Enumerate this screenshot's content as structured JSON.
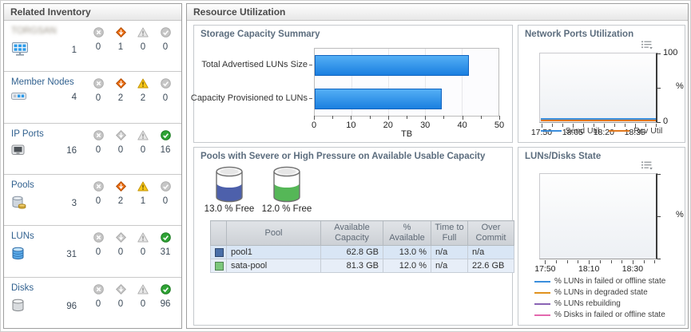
{
  "left_panel": {
    "title": "Related Inventory",
    "status_order": [
      "failed",
      "major",
      "warning",
      "normal"
    ],
    "rows": [
      {
        "label": "TORGSAN",
        "blurred": true,
        "icon": "system-icon",
        "count": 1,
        "statuses": {
          "failed": 0,
          "major": 1,
          "warning": 0,
          "normal": 0
        }
      },
      {
        "label": "Member Nodes",
        "blurred": false,
        "icon": "node-icon",
        "count": 4,
        "statuses": {
          "failed": 0,
          "major": 2,
          "warning": 2,
          "normal": 0
        }
      },
      {
        "label": "IP Ports",
        "blurred": false,
        "icon": "port-icon",
        "count": 16,
        "statuses": {
          "failed": 0,
          "major": 0,
          "warning": 0,
          "normal": 16
        }
      },
      {
        "label": "Pools",
        "blurred": false,
        "icon": "pool-icon",
        "count": 3,
        "statuses": {
          "failed": 0,
          "major": 2,
          "warning": 1,
          "normal": 0
        }
      },
      {
        "label": "LUNs",
        "blurred": false,
        "icon": "lun-icon",
        "count": 31,
        "statuses": {
          "failed": 0,
          "major": 0,
          "warning": 0,
          "normal": 31
        }
      },
      {
        "label": "Disks",
        "blurred": false,
        "icon": "disk-icon",
        "count": 96,
        "statuses": {
          "failed": 0,
          "major": 0,
          "warning": 0,
          "normal": 96
        }
      }
    ]
  },
  "right_panel": {
    "title": "Resource Utilization"
  },
  "chart_data": [
    {
      "id": "storage_capacity_summary",
      "type": "bar",
      "orientation": "horizontal",
      "title": "Storage Capacity Summary",
      "categories": [
        "Total Advertised LUNs Size",
        "Capacity Provisioned to LUNs"
      ],
      "values": [
        42,
        34.5
      ],
      "xlabel": "TB",
      "xlim": [
        0,
        50
      ],
      "xticks": [
        0,
        10,
        20,
        30,
        40,
        50
      ],
      "bar_color": "#1f87e8",
      "grid": true
    },
    {
      "id": "network_ports_utilization",
      "type": "line",
      "title": "Network Ports Utilization",
      "x_ticks": [
        "17:50",
        "18:05",
        "18:20",
        "18:35"
      ],
      "ylabel": "%",
      "ylim": [
        0,
        100
      ],
      "legend_position": "bottom",
      "series": [
        {
          "name": "Send Util",
          "color": "#3b8edc",
          "values": [
            3,
            3,
            3,
            3,
            3,
            3,
            3,
            3,
            3,
            3,
            3,
            3
          ]
        },
        {
          "name": "Rcv Util",
          "color": "#e0781e",
          "values": [
            1.5,
            1.5,
            1.5,
            1.5,
            1.5,
            1.5,
            1.5,
            1.5,
            1.5,
            1.5,
            1.5,
            1.5
          ]
        }
      ]
    },
    {
      "id": "luns_disks_state",
      "type": "line",
      "title": "LUNs/Disks State",
      "x_ticks": [
        "17:50",
        "18:10",
        "18:30"
      ],
      "ylabel": "%",
      "ylim": [
        0,
        100
      ],
      "legend_position": "bottom",
      "series": [
        {
          "name": "% LUNs in failed or offline state",
          "color": "#3b8edc",
          "values": []
        },
        {
          "name": "% LUNs in degraded state",
          "color": "#e0921e",
          "values": []
        },
        {
          "name": "% LUNs rebuilding",
          "color": "#8a63b4",
          "values": []
        },
        {
          "name": "% Disks in failed or offline state",
          "color": "#e368ae",
          "values": []
        }
      ]
    }
  ],
  "pools_panel": {
    "title": "Pools with Severe or High Pressure on Available Usable Capacity",
    "gauges": [
      {
        "label": "13.0 % Free",
        "fill_color": "#4d60ab",
        "fill_pct": 55
      },
      {
        "label": "12.0 % Free",
        "fill_color": "#55b757",
        "fill_pct": 55
      }
    ],
    "table": {
      "columns": [
        "",
        "Pool",
        "Available Capacity",
        "% Available",
        "Time to Full",
        "Over Commit"
      ],
      "rows": [
        {
          "swatch": "#4a6fa8",
          "cells": [
            "pool1",
            "62.8 GB",
            "13.0 %",
            "n/a",
            "n/a"
          ],
          "muted_last": true
        },
        {
          "swatch": "#7cc87c",
          "cells": [
            "sata-pool",
            "81.3 GB",
            "12.0 %",
            "n/a",
            "22.6 GB"
          ],
          "muted_last": false
        }
      ]
    }
  }
}
